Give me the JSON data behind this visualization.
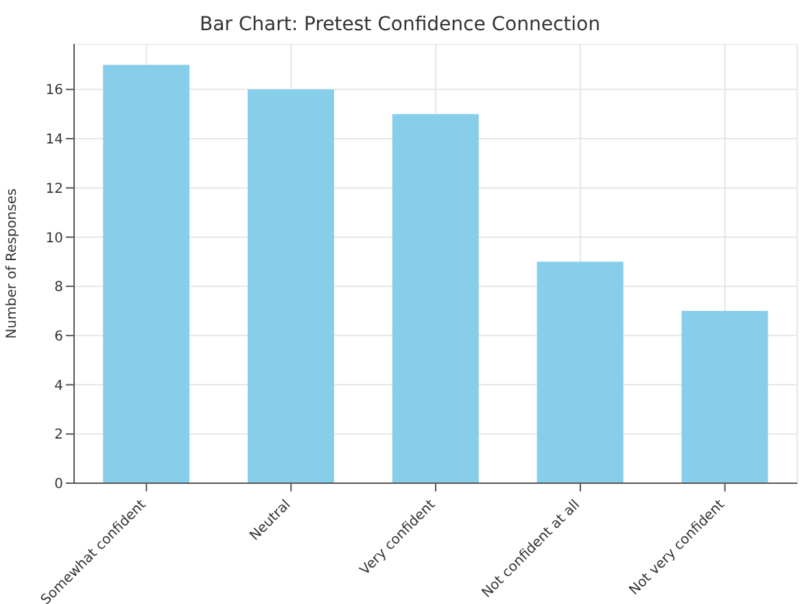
{
  "chart_data": {
    "type": "bar",
    "title": "Bar Chart: Pretest Confidence Connection",
    "ylabel": "Number of Responses",
    "categories": [
      "Somewhat confident",
      "Neutral",
      "Very confident",
      "Not confident at all",
      "Not very confident"
    ],
    "values": [
      17,
      16,
      15,
      9,
      7
    ],
    "color": "#87ceeb",
    "ylim": [
      0,
      17.85
    ],
    "yticks": [
      0,
      2,
      4,
      6,
      8,
      10,
      12,
      14,
      16
    ],
    "grid": true
  }
}
